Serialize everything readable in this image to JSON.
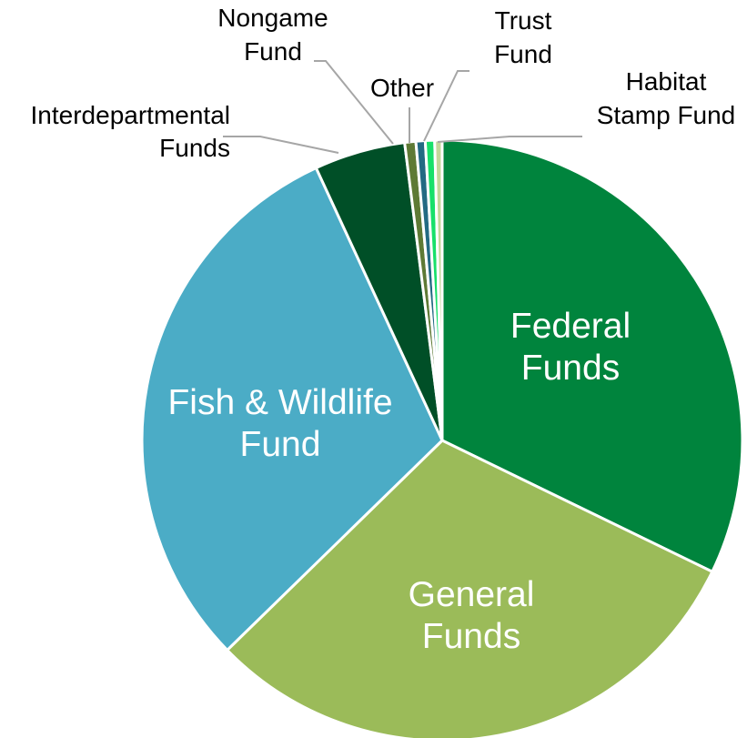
{
  "chart_data": {
    "type": "pie",
    "title": "",
    "slices": [
      {
        "name": "Federal Funds",
        "lines": [
          "Federal",
          "Funds"
        ],
        "value": 32.2,
        "color": "#00843d",
        "label_style": "inside"
      },
      {
        "name": "General Funds",
        "lines": [
          "General",
          "Funds"
        ],
        "value": 30.5,
        "color": "#9bbb59",
        "label_style": "inside"
      },
      {
        "name": "Fish & Wildlife Fund",
        "lines": [
          "Fish & Wildlife",
          "Fund"
        ],
        "value": 30.4,
        "color": "#4bacc6",
        "label_style": "inside"
      },
      {
        "name": "Interdepartmental Funds",
        "lines": [
          "Interdepartmental",
          "Funds"
        ],
        "value": 4.9,
        "color": "#004f27",
        "label_style": "outside"
      },
      {
        "name": "Nongame Fund",
        "lines": [
          "Nongame",
          "Fund"
        ],
        "value": 0.6,
        "color": "#5e7a35",
        "label_style": "outside"
      },
      {
        "name": "Other",
        "lines": [
          "Other"
        ],
        "value": 0.5,
        "color": "#236a83",
        "label_style": "outside"
      },
      {
        "name": "Trust Fund",
        "lines": [
          "Trust",
          "Fund"
        ],
        "value": 0.5,
        "color": "#18e06a",
        "label_style": "outside"
      },
      {
        "name": "Habitat Stamp Fund",
        "lines": [
          "Habitat",
          "Stamp Fund"
        ],
        "value": 0.4,
        "color": "#c4d79b",
        "label_style": "outside"
      }
    ]
  }
}
